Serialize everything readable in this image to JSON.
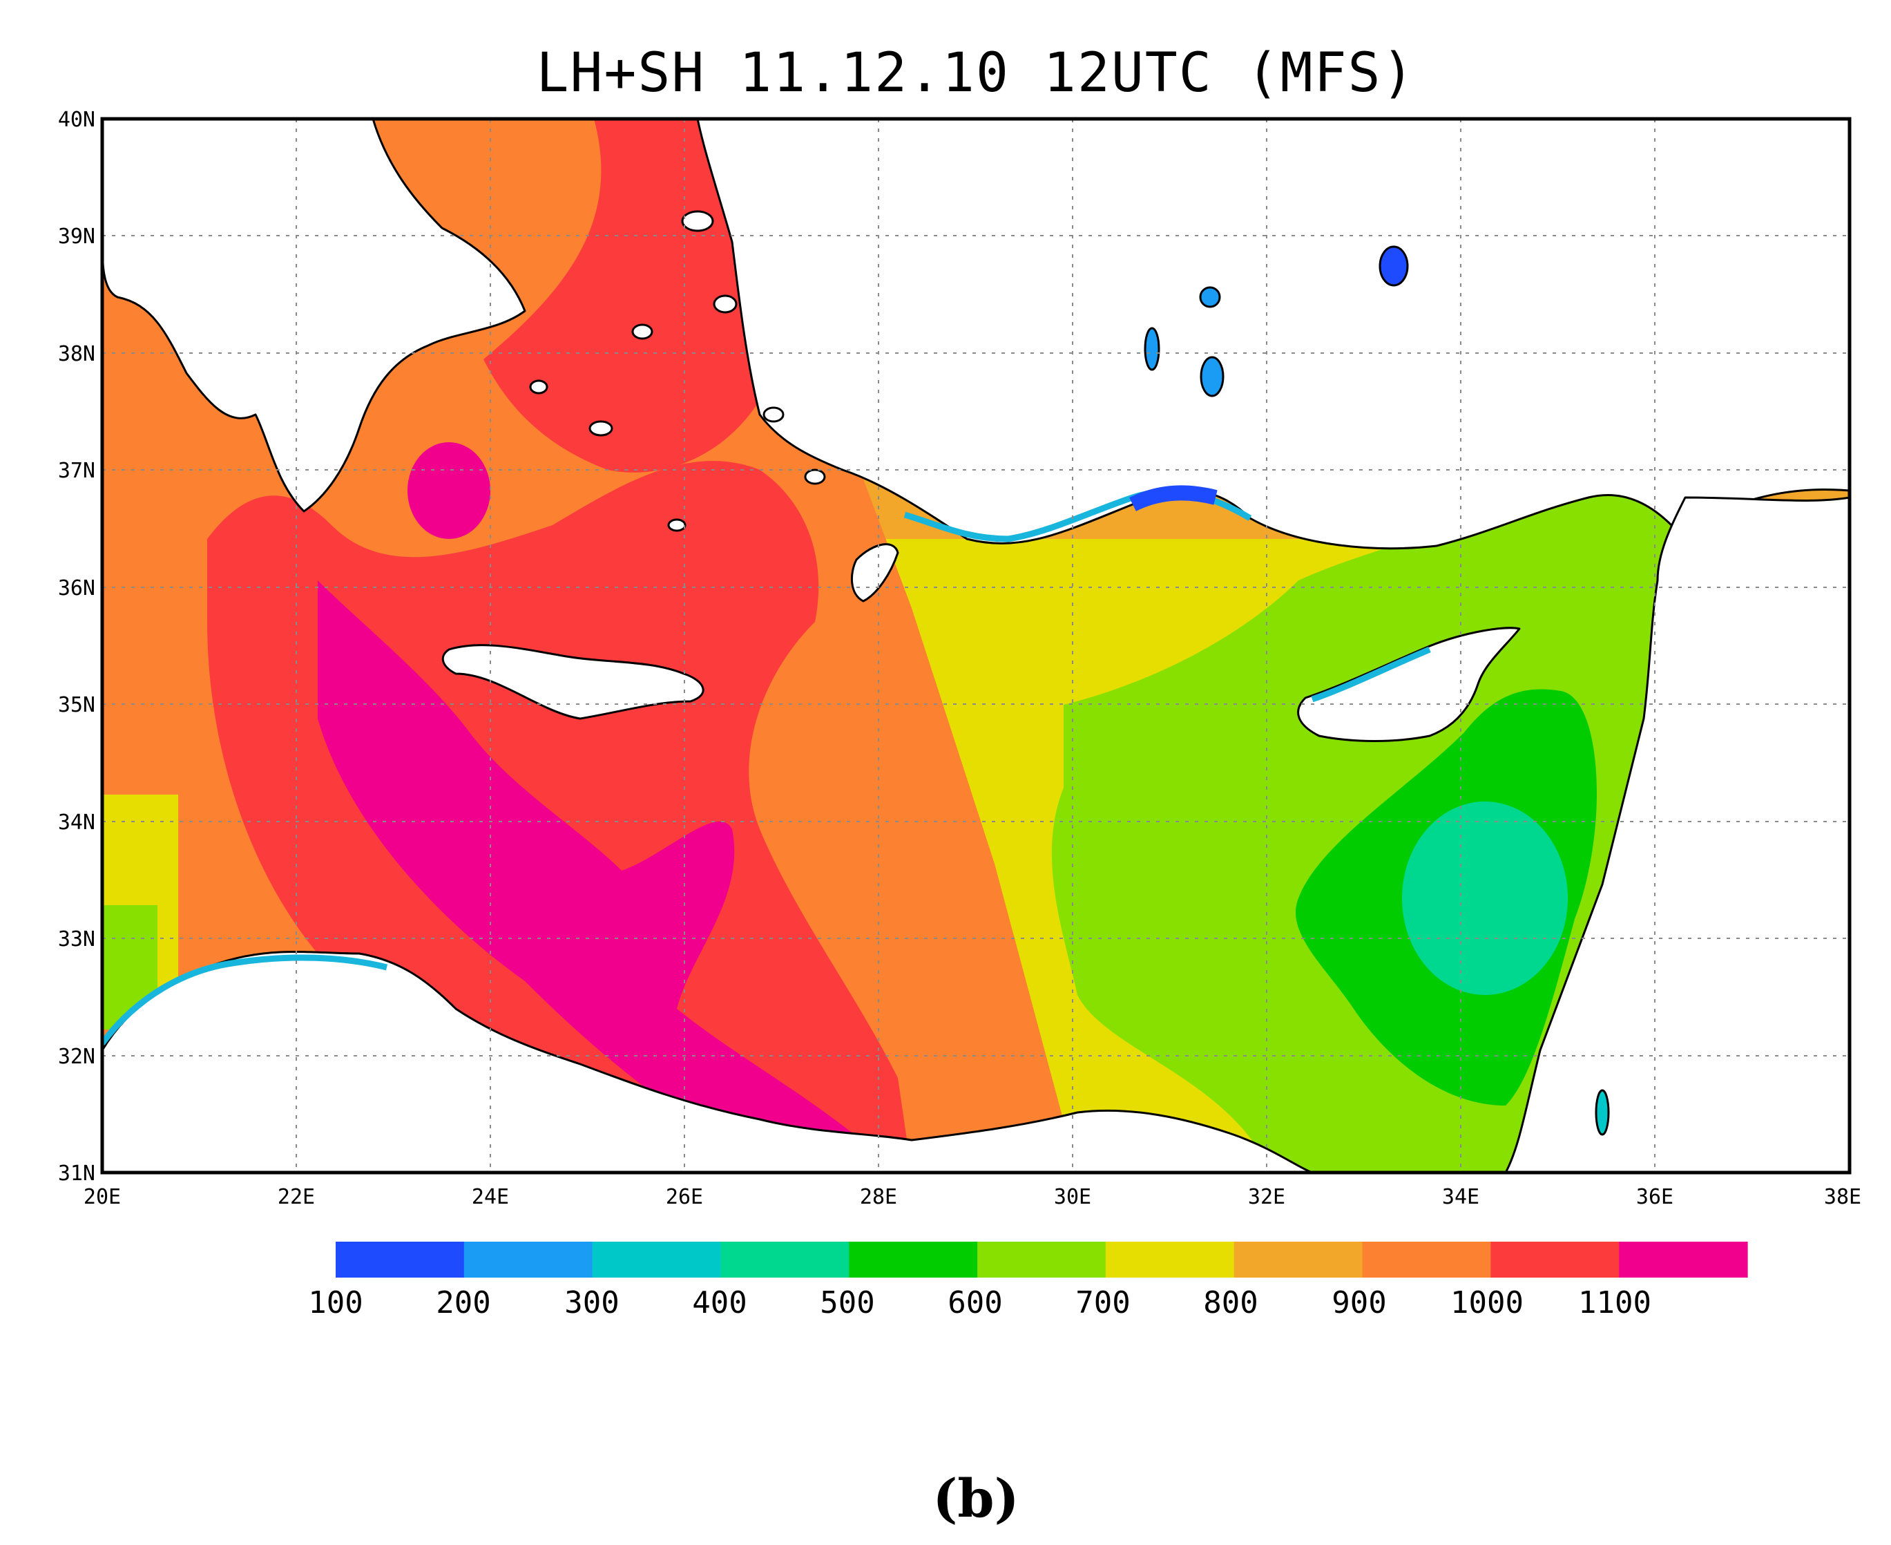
{
  "title": "LH+SH 11.12.10 12UTC (MFS)",
  "panel_label": "(b)",
  "axes": {
    "lon_ticks": [
      "20E",
      "22E",
      "24E",
      "26E",
      "28E",
      "30E",
      "32E",
      "34E",
      "36E",
      "38E"
    ],
    "lat_ticks": [
      "40N",
      "39N",
      "38N",
      "37N",
      "36N",
      "35N",
      "34N",
      "33N",
      "32N",
      "31N"
    ],
    "lon_range": [
      20,
      38
    ],
    "lat_range": [
      31,
      40
    ],
    "grid": "dotted"
  },
  "colorbar": {
    "labels": [
      "100",
      "200",
      "300",
      "400",
      "500",
      "600",
      "700",
      "800",
      "900",
      "1000",
      "1100"
    ],
    "colors": [
      "#1f4bff",
      "#1a9cf5",
      "#00c8c8",
      "#00d890",
      "#00cc00",
      "#88e000",
      "#e6de00",
      "#f2a72a",
      "#fc8232",
      "#fc3c3c",
      "#f0008c"
    ]
  },
  "colors": {
    "land": "#ffffff",
    "coast": "#000000",
    "coast_fringe": "#18b6dc"
  }
}
